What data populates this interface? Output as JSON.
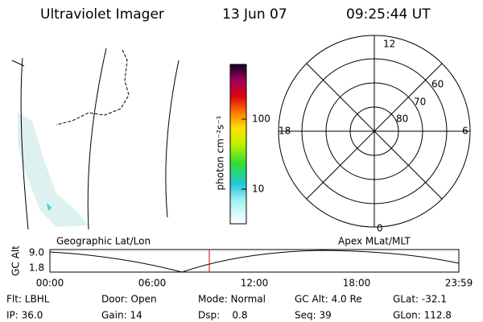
{
  "header": {
    "title": "Ultraviolet Imager",
    "date": "13 Jun 07",
    "time": "09:25:44 UT"
  },
  "colorbar": {
    "unit": "photon cm⁻²s⁻¹",
    "labels": [
      "100",
      "10"
    ]
  },
  "polar_plot": {
    "mlt_labels": [
      "12",
      "18",
      "6",
      "0"
    ],
    "lat_labels": [
      "60",
      "70",
      "80"
    ]
  },
  "orbit_plot": {
    "y_label": "GC Alt",
    "y_labels": [
      "9.0",
      "1.8"
    ],
    "x_labels": [
      "00:00",
      "06:00",
      "12:00",
      "18:00",
      "23:59"
    ],
    "left_caption": "Geographic Lat/Lon",
    "right_caption": "Apex MLat/MLT"
  },
  "footer": {
    "rows": [
      [
        "Flt: LBHL",
        "Door: Open",
        "Mode: Normal",
        "GC Alt: 4.0 Re",
        "GLat: -32.1"
      ],
      [
        "IP: 36.0",
        "Gain: 14",
        "Dsp:    0.8",
        "Seq: 39",
        "GLon: 112.8"
      ]
    ]
  }
}
